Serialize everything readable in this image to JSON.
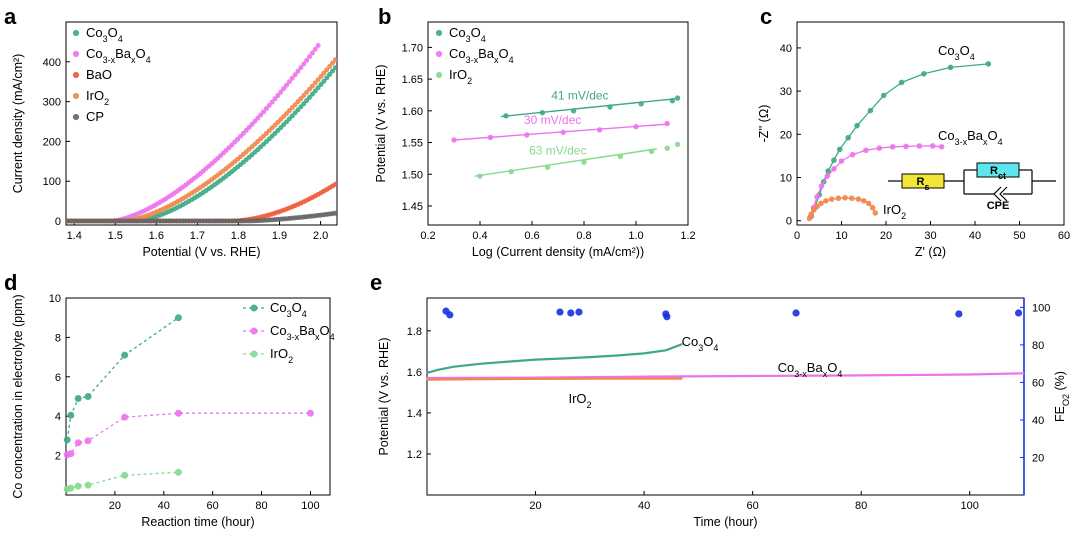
{
  "chart_data": [
    {
      "id": "a",
      "panel_label": "a",
      "type": "scatter",
      "xlabel": "Potential (V vs. RHE)",
      "ylabel": "Current density (mA/cm²)",
      "xlim": [
        1.38,
        2.04
      ],
      "ylim": [
        -10,
        500
      ],
      "xticks": [
        "1.4",
        "1.5",
        "1.6",
        "1.7",
        "1.8",
        "1.9",
        "2.0"
      ],
      "yticks": [
        "0",
        "100",
        "200",
        "300",
        "400"
      ],
      "legend_position": "top-left",
      "series": [
        {
          "name": "Co3O4",
          "label_main": "Co",
          "label_sub1": "3",
          "label_mid": "O",
          "label_sub2": "4",
          "label_end": "",
          "color": "#3daa87",
          "onset": 1.55,
          "value_at_max": 390,
          "exponent": 1.55
        },
        {
          "name": "Co3-xBaxO4",
          "label_main": "Co",
          "label_sub1": "3-x",
          "label_mid": "Ba",
          "label_sub2": "x",
          "label_end": "O",
          "label_sub3": "4",
          "color": "#ee72ee",
          "onset": 1.49,
          "value_at_max": 505,
          "exponent": 1.55,
          "x_end": 2.0
        },
        {
          "name": "BaO",
          "label_main": "BaO",
          "label_sub1": "",
          "label_mid": "",
          "label_sub2": "",
          "label_end": "",
          "color": "#ef5a3c",
          "onset": 1.78,
          "value_at_max": 95,
          "exponent": 1.8
        },
        {
          "name": "IrO2",
          "label_main": "IrO",
          "label_sub1": "2",
          "label_mid": "",
          "label_sub2": "",
          "label_end": "",
          "color": "#f0884a",
          "onset": 1.52,
          "value_at_max": 410,
          "exponent": 1.55
        },
        {
          "name": "CP",
          "label_main": "CP",
          "label_sub1": "",
          "label_mid": "",
          "label_sub2": "",
          "label_end": "",
          "color": "#666666",
          "onset": 1.82,
          "value_at_max": 20,
          "exponent": 1.5
        }
      ]
    },
    {
      "id": "b",
      "panel_label": "b",
      "type": "scatter",
      "xlabel": "Log (Current density (mA/cm²))",
      "ylabel": "Potential (V vs. RHE)",
      "xlim": [
        0.2,
        1.2
      ],
      "ylim": [
        1.42,
        1.74
      ],
      "xticks": [
        "0.2",
        "0.4",
        "0.6",
        "0.8",
        "1.0",
        "1.2"
      ],
      "yticks": [
        "1.45",
        "1.50",
        "1.55",
        "1.60",
        "1.65",
        "1.70"
      ],
      "series": [
        {
          "name": "Co3O4",
          "color": "#3daa87",
          "tafel": "41 mV/dec",
          "x": [
            0.5,
            0.64,
            0.76,
            0.9,
            1.02,
            1.14,
            1.16
          ],
          "y": [
            1.592,
            1.597,
            1.6,
            1.606,
            1.611,
            1.616,
            1.62
          ],
          "fit": [
            [
              0.48,
              1.591
            ],
            [
              1.15,
              1.619
            ]
          ]
        },
        {
          "name": "Co3-xBaxO4",
          "color": "#ee72ee",
          "tafel": "30 mV/dec",
          "x": [
            0.3,
            0.44,
            0.58,
            0.72,
            0.86,
            1.0,
            1.12
          ],
          "y": [
            1.554,
            1.558,
            1.562,
            1.566,
            1.57,
            1.575,
            1.58
          ],
          "fit": [
            [
              0.3,
              1.554
            ],
            [
              1.12,
              1.579
            ]
          ]
        },
        {
          "name": "IrO2",
          "color": "#86d98d",
          "tafel": "63 mV/dec",
          "x": [
            0.4,
            0.52,
            0.66,
            0.8,
            0.94,
            1.06,
            1.12,
            1.16
          ],
          "y": [
            1.497,
            1.504,
            1.511,
            1.519,
            1.528,
            1.536,
            1.541,
            1.547
          ],
          "fit": [
            [
              0.38,
              1.497
            ],
            [
              1.08,
              1.54
            ]
          ]
        }
      ]
    },
    {
      "id": "c",
      "panel_label": "c",
      "type": "scatter",
      "xlabel": "Z' (Ω)",
      "ylabel": "-Z'' (Ω)",
      "xlim": [
        0,
        60
      ],
      "ylim": [
        -1,
        46
      ],
      "xticks": [
        "0",
        "10",
        "20",
        "30",
        "40",
        "50",
        "60"
      ],
      "yticks": [
        "0",
        "10",
        "20",
        "30",
        "40"
      ],
      "series": [
        {
          "name": "Co3O4",
          "color": "#3daa87",
          "x": [
            3.2,
            4.0,
            5.0,
            6.0,
            7.0,
            8.3,
            9.6,
            11.5,
            13.5,
            16.5,
            19.5,
            23.5,
            28.5,
            34.5,
            43.0
          ],
          "y": [
            1.0,
            3.0,
            6.0,
            9.0,
            11.5,
            14.0,
            16.5,
            19.2,
            22.0,
            25.5,
            29.0,
            32.0,
            34.0,
            35.5,
            36.3
          ]
        },
        {
          "name": "Co3-xBaxO4",
          "color": "#ee72ee",
          "x": [
            3.0,
            3.7,
            4.5,
            5.5,
            6.8,
            8.3,
            10.0,
            12.5,
            15.5,
            18.5,
            21.5,
            24.5,
            27.5,
            30.5,
            32.5
          ],
          "y": [
            1.0,
            3.0,
            5.5,
            8.0,
            10.3,
            12.0,
            13.8,
            15.3,
            16.3,
            16.8,
            17.1,
            17.2,
            17.3,
            17.3,
            17.1
          ]
        },
        {
          "name": "IrO2",
          "color": "#f0884a",
          "x": [
            2.8,
            3.2,
            3.8,
            4.5,
            5.4,
            6.5,
            7.8,
            9.3,
            10.8,
            12.3,
            13.8,
            15.0,
            16.1,
            17.0,
            17.6
          ],
          "y": [
            0.5,
            1.5,
            2.5,
            3.3,
            4.0,
            4.6,
            5.0,
            5.2,
            5.3,
            5.2,
            5.0,
            4.6,
            4.0,
            3.0,
            1.8
          ]
        }
      ],
      "inset": {
        "r_label": "R",
        "r_sub": "s",
        "rct_label": "R",
        "rct_sub": "ct",
        "cpe_label": "CPE"
      }
    },
    {
      "id": "d",
      "panel_label": "d",
      "type": "line",
      "xlabel": "Reaction time (hour)",
      "ylabel": "Co concentration in electrolyte (ppm)",
      "xlim": [
        0,
        108
      ],
      "ylim": [
        0,
        10
      ],
      "xticks": [
        "20",
        "40",
        "60",
        "80",
        "100"
      ],
      "yticks": [
        "2",
        "4",
        "6",
        "8",
        "10"
      ],
      "series": [
        {
          "name": "Co3O4",
          "color": "#3daa87",
          "x": [
            0.5,
            2,
            5,
            9,
            24,
            46
          ],
          "y": [
            2.8,
            4.05,
            4.9,
            5.0,
            7.1,
            9.0
          ]
        },
        {
          "name": "Co3-xBaxO4",
          "color": "#ee72ee",
          "x": [
            0.5,
            2,
            5,
            9,
            24,
            46,
            100
          ],
          "y": [
            2.05,
            2.1,
            2.65,
            2.75,
            3.95,
            4.15,
            4.15
          ]
        },
        {
          "name": "IrO2",
          "color": "#86d98d",
          "x": [
            0.5,
            2,
            5,
            9,
            24,
            46
          ],
          "y": [
            0.3,
            0.35,
            0.45,
            0.5,
            1.0,
            1.15
          ]
        }
      ]
    },
    {
      "id": "e",
      "panel_label": "e",
      "type": "line",
      "xlabel": "Time (hour)",
      "ylabel": "Potential (V vs. RHE)",
      "y2label_main": "FE",
      "y2label_sub": "O2",
      "y2label_end": " (%)",
      "xlim": [
        0,
        110
      ],
      "ylim": [
        1.0,
        1.96
      ],
      "y2lim": [
        0,
        105
      ],
      "xticks": [
        "20",
        "40",
        "60",
        "80",
        "100"
      ],
      "yticks": [
        "1.2",
        "1.4",
        "1.6",
        "1.8"
      ],
      "y2ticks": [
        "20",
        "40",
        "60",
        "80",
        "100"
      ],
      "series": [
        {
          "name": "Co3O4",
          "color": "#3daa87",
          "x": [
            0,
            2,
            5,
            10,
            15,
            20,
            25,
            30,
            35,
            40,
            44,
            47
          ],
          "y": [
            1.595,
            1.61,
            1.625,
            1.64,
            1.65,
            1.66,
            1.665,
            1.672,
            1.68,
            1.69,
            1.705,
            1.735
          ]
        },
        {
          "name": "Co3-xBaxO4",
          "color": "#ee72ee",
          "x": [
            0,
            20,
            40,
            60,
            80,
            100,
            110
          ],
          "y": [
            1.57,
            1.572,
            1.577,
            1.58,
            1.583,
            1.587,
            1.593
          ]
        },
        {
          "name": "IrO2",
          "color": "#f0884a",
          "x": [
            0,
            10,
            20,
            30,
            40,
            47
          ],
          "y": [
            1.562,
            1.565,
            1.566,
            1.567,
            1.567,
            1.567
          ]
        }
      ],
      "fe_points": {
        "name": "FE O2",
        "color": "#1a2fe0",
        "x": [
          3.5,
          4.2,
          24.5,
          26.5,
          28,
          44,
          44.2,
          68,
          98,
          109
        ],
        "y": [
          98,
          96,
          97.5,
          97,
          97.5,
          96.5,
          95,
          97,
          96.5,
          97
        ]
      }
    }
  ]
}
